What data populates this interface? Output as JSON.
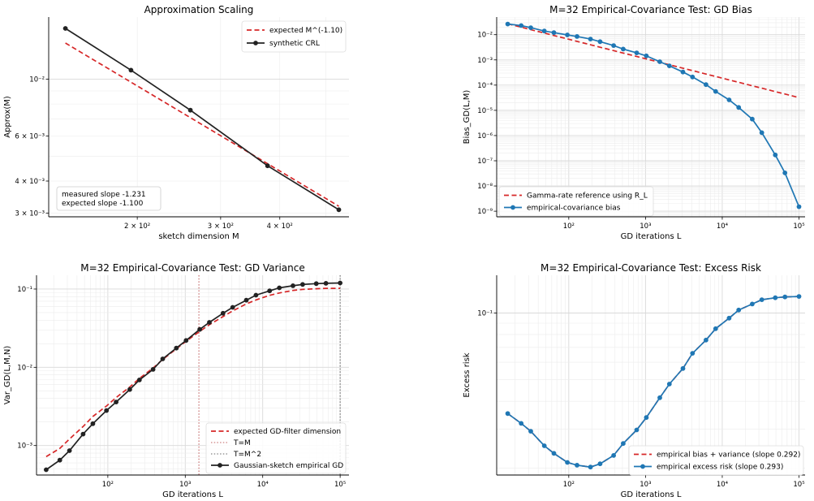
{
  "chart_data": [
    {
      "type": "line",
      "title": "Approximation Scaling",
      "xlabel": "sketch dimension M",
      "ylabel": "Approx(M)",
      "xscale": "log",
      "yscale": "log",
      "xlim": [
        130,
        560
      ],
      "ylim": [
        0.0029,
        0.0175
      ],
      "grid": true,
      "legend": "top-right",
      "xticks": [
        {
          "value": 200,
          "label": "2 × 10²"
        },
        {
          "value": 300,
          "label": "3 × 10²"
        },
        {
          "value": 400,
          "label": "4 × 10²"
        }
      ],
      "yticks": [
        {
          "value": 0.003,
          "label": "3 × 10⁻³"
        },
        {
          "value": 0.004,
          "label": "4 × 10⁻³"
        },
        {
          "value": 0.006,
          "label": "6 × 10⁻³"
        },
        {
          "value": 0.01,
          "label": "10⁻²"
        }
      ],
      "series": [
        {
          "name": "expected M^(-1.10)",
          "style": "dashed",
          "color": "#d62728",
          "x": [
            141,
            533
          ],
          "y": [
            0.01385,
            0.00319
          ]
        },
        {
          "name": "synthetic CRL",
          "style": "solid-marker",
          "color": "#222222",
          "x": [
            141,
            194,
            259,
            377,
            533
          ],
          "y": [
            0.0158,
            0.01085,
            0.00757,
            0.00459,
            0.00309
          ]
        }
      ],
      "annotation": [
        "measured slope -1.231",
        "expected slope -1.100"
      ]
    },
    {
      "type": "line",
      "title": "M=32 Empirical-Covariance Test: GD Bias",
      "xlabel": "GD iterations L",
      "ylabel": "Bias_GD(L,M)",
      "xscale": "log",
      "yscale": "log",
      "xlim": [
        11.5,
        120000
      ],
      "ylim": [
        6e-10,
        0.05
      ],
      "grid": true,
      "legend": "bottom-left",
      "xticks": [
        {
          "value": 100,
          "label": "10²"
        },
        {
          "value": 1000,
          "label": "10³"
        },
        {
          "value": 10000,
          "label": "10⁴"
        },
        {
          "value": 100000,
          "label": "10⁵"
        }
      ],
      "yticks": [
        {
          "value": 1e-09,
          "label": "10⁻⁹"
        },
        {
          "value": 1e-08,
          "label": "10⁻⁸"
        },
        {
          "value": 1e-07,
          "label": "10⁻⁷"
        },
        {
          "value": 1e-06,
          "label": "10⁻⁶"
        },
        {
          "value": 1e-05,
          "label": "10⁻⁵"
        },
        {
          "value": 0.0001,
          "label": "10⁻⁴"
        },
        {
          "value": 0.001,
          "label": "10⁻³"
        },
        {
          "value": 0.01,
          "label": "10⁻²"
        }
      ],
      "series": [
        {
          "name": "Gamma-rate reference using R_L",
          "style": "dashed",
          "color": "#d62728",
          "x": [
            16,
            100000
          ],
          "y": [
            0.027,
            3.2e-05
          ]
        },
        {
          "name": "empirical-covariance bias",
          "style": "solid-marker",
          "color": "#1f77b4",
          "x": [
            16,
            24,
            32,
            48,
            64,
            96,
            128,
            192,
            256,
            384,
            512,
            768,
            1024,
            1536,
            2048,
            3072,
            4096,
            6144,
            8192,
            12288,
            16384,
            24576,
            32768,
            49152,
            65536,
            100000
          ],
          "y": [
            0.0265,
            0.023,
            0.019,
            0.014,
            0.012,
            0.0098,
            0.0085,
            0.0067,
            0.0053,
            0.0037,
            0.0027,
            0.0019,
            0.00145,
            0.00085,
            0.00058,
            0.00033,
            0.00021,
            0.000105,
            5.6e-05,
            2.6e-05,
            1.3e-05,
            4.5e-06,
            1.3e-06,
            1.7e-07,
            3.3e-08,
            1.5e-09
          ]
        }
      ]
    },
    {
      "type": "line",
      "title": "M=32 Empirical-Covariance Test: GD Variance",
      "xlabel": "GD iterations L",
      "ylabel": "Var_GD(L,M,N)",
      "xscale": "log",
      "yscale": "log",
      "xlim": [
        12,
        130000
      ],
      "ylim": [
        0.00042,
        0.15
      ],
      "grid": true,
      "legend": "bottom-right",
      "xticks": [
        {
          "value": 100,
          "label": "10²"
        },
        {
          "value": 1000,
          "label": "10³"
        },
        {
          "value": 10000,
          "label": "10⁴"
        },
        {
          "value": 100000,
          "label": "10⁵"
        }
      ],
      "yticks": [
        {
          "value": 0.001,
          "label": "10⁻³"
        },
        {
          "value": 0.01,
          "label": "10⁻²"
        },
        {
          "value": 0.1,
          "label": "10⁻¹"
        }
      ],
      "vlines": [
        {
          "name": "T=M",
          "x": 1500,
          "color": "#c06060"
        },
        {
          "name": "T=M^2",
          "x": 100000,
          "color": "#666666"
        }
      ],
      "series": [
        {
          "name": "expected GD-filter dimension",
          "style": "dashed",
          "color": "#d62728",
          "x": [
            16,
            24,
            32,
            48,
            64,
            96,
            128,
            192,
            256,
            384,
            512,
            768,
            1024,
            1536,
            2048,
            3072,
            4096,
            6144,
            8192,
            12288,
            16384,
            24576,
            32768,
            49152,
            65536,
            100000
          ],
          "y": [
            0.00072,
            0.00092,
            0.00121,
            0.00175,
            0.00235,
            0.0032,
            0.0041,
            0.0056,
            0.0072,
            0.0098,
            0.0126,
            0.0172,
            0.0215,
            0.0288,
            0.035,
            0.0445,
            0.0525,
            0.0645,
            0.0725,
            0.0832,
            0.0892,
            0.096,
            0.099,
            0.101,
            0.102,
            0.102
          ]
        },
        {
          "name": "Gaussian-sketch empirical GD",
          "style": "solid-marker",
          "color": "#222222",
          "x": [
            16,
            24,
            32,
            48,
            64,
            96,
            128,
            192,
            256,
            384,
            512,
            768,
            1024,
            1536,
            2048,
            3072,
            4096,
            6144,
            8192,
            12288,
            16384,
            24576,
            32768,
            49152,
            65536,
            100000
          ],
          "y": [
            0.00049,
            0.00065,
            0.00086,
            0.0014,
            0.0019,
            0.0028,
            0.0036,
            0.0052,
            0.0069,
            0.0094,
            0.0128,
            0.0176,
            0.022,
            0.0305,
            0.0375,
            0.049,
            0.0583,
            0.072,
            0.0835,
            0.0948,
            0.1035,
            0.1102,
            0.1145,
            0.1172,
            0.1185,
            0.1195
          ]
        }
      ]
    },
    {
      "type": "line",
      "title": "M=32 Empirical-Covariance Test: Excess Risk",
      "xlabel": "GD iterations L",
      "ylabel": "Excess risk",
      "xscale": "log",
      "yscale": "log",
      "xlim": [
        11.5,
        120000
      ],
      "ylim": [
        0.0186,
        0.148
      ],
      "grid": true,
      "legend": "bottom-right",
      "xticks": [
        {
          "value": 100,
          "label": "10²"
        },
        {
          "value": 1000,
          "label": "10³"
        },
        {
          "value": 10000,
          "label": "10⁴"
        },
        {
          "value": 100000,
          "label": "10⁵"
        }
      ],
      "yticks": [
        {
          "value": 0.1,
          "label": "10⁻¹"
        }
      ],
      "series": [
        {
          "name": "empirical bias + variance (slope 0.292)",
          "style": "dashed",
          "color": "#d62728",
          "x": [
            16,
            24,
            32,
            48,
            64,
            96,
            128,
            192,
            256,
            384,
            512,
            768,
            1024,
            1536,
            2048,
            3072,
            4096,
            6144,
            8192,
            12288,
            16384,
            24576,
            32768,
            49152,
            65536,
            100000
          ],
          "y": [
            0.0352,
            0.0318,
            0.0293,
            0.0252,
            0.0233,
            0.0212,
            0.0206,
            0.0202,
            0.0209,
            0.0228,
            0.0258,
            0.0297,
            0.0338,
            0.0415,
            0.0478,
            0.0562,
            0.0658,
            0.0755,
            0.085,
            0.0948,
            0.1032,
            0.1098,
            0.1148,
            0.1172,
            0.1182,
            0.1188
          ]
        },
        {
          "name": "empirical excess risk (slope 0.293)",
          "style": "solid-marker",
          "color": "#1f77b4",
          "x": [
            16,
            24,
            32,
            48,
            64,
            96,
            128,
            192,
            256,
            384,
            512,
            768,
            1024,
            1536,
            2048,
            3072,
            4096,
            6144,
            8192,
            12288,
            16384,
            24576,
            32768,
            49152,
            65536,
            100000
          ],
          "y": [
            0.0352,
            0.0318,
            0.0293,
            0.0252,
            0.0233,
            0.0212,
            0.0206,
            0.0202,
            0.0209,
            0.0228,
            0.0258,
            0.0297,
            0.0338,
            0.0415,
            0.0478,
            0.0562,
            0.0658,
            0.0755,
            0.085,
            0.0948,
            0.1032,
            0.1098,
            0.1148,
            0.1172,
            0.1182,
            0.1188
          ]
        }
      ]
    }
  ]
}
